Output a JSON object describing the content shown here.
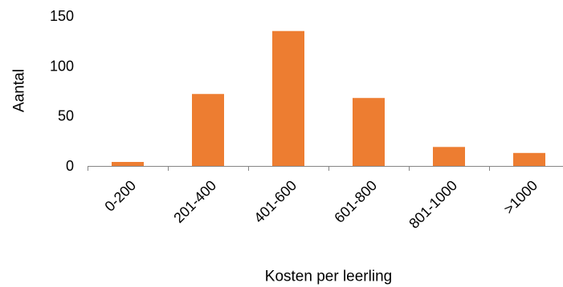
{
  "chart_data": {
    "type": "bar",
    "categories": [
      "0-200",
      "201-400",
      "401-600",
      "601-800",
      "801-1000",
      ">1000"
    ],
    "values": [
      4,
      72,
      135,
      68,
      19,
      13
    ],
    "title": "",
    "xlabel": "Kosten per leerling",
    "ylabel": "Aantal",
    "ylim": [
      0,
      150
    ],
    "yticks": [
      0,
      50,
      100,
      150
    ],
    "grid": false,
    "legend": "none",
    "bar_color": "#ED7D31",
    "axis_color": "#868686"
  }
}
